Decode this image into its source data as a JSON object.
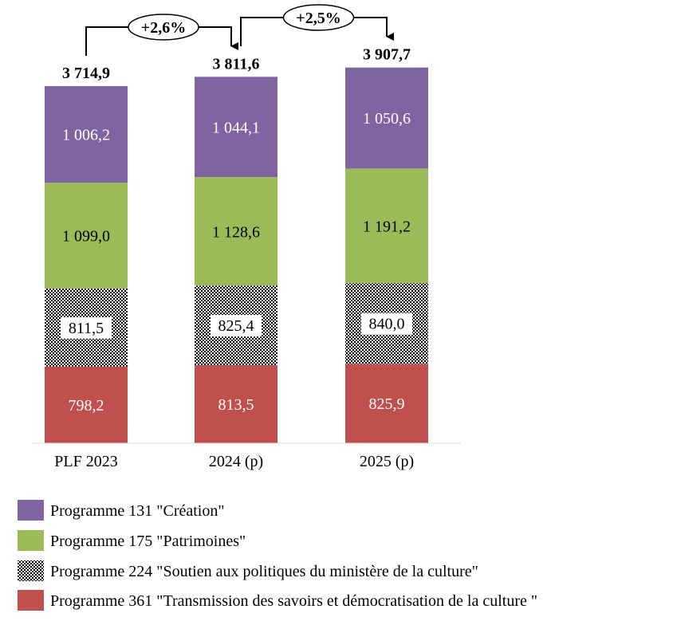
{
  "chart_data": {
    "type": "bar",
    "stacked": true,
    "categories": [
      "PLF 2023",
      "2024 (p)",
      "2025 (p)"
    ],
    "totals": [
      "3 714,9",
      "3 811,6",
      "3 907,7"
    ],
    "series": [
      {
        "name": "Programme 361 \"Transmission des savoirs et démocratisation de la culture \"",
        "values": [
          798.2,
          813.5,
          825.9
        ],
        "labels": [
          "798,2",
          "813,5",
          "825,9"
        ],
        "color": "#c0504d",
        "pattern": "none"
      },
      {
        "name": "Programme 224 \"Soutien aux politiques du ministère de la culture\"",
        "values": [
          811.5,
          825.4,
          840.0
        ],
        "labels": [
          "811,5",
          "825,4",
          "840,0"
        ],
        "color": "#000000",
        "pattern": "checkerboard"
      },
      {
        "name": "Programme 175 \"Patrimoines\"",
        "values": [
          1099.0,
          1128.6,
          1191.2
        ],
        "labels": [
          "1 099,0",
          "1 128,6",
          "1 191,2"
        ],
        "color": "#9bbb59",
        "pattern": "none"
      },
      {
        "name": "Programme 131 \"Création\"",
        "values": [
          1006.2,
          1044.1,
          1050.6
        ],
        "labels": [
          "1 006,2",
          "1 044,1",
          "1 050,6"
        ],
        "color": "#8064a2",
        "pattern": "none"
      }
    ],
    "growth_annotations": [
      {
        "from": 0,
        "to": 1,
        "label": "+2,6%"
      },
      {
        "from": 1,
        "to": 2,
        "label": "+2,5%"
      }
    ],
    "legend_order": [
      3,
      2,
      1,
      0
    ],
    "legend_position": "bottom",
    "ylim": [
      0,
      3907.7
    ],
    "grid": false,
    "title": "",
    "xlabel": "",
    "ylabel": ""
  }
}
